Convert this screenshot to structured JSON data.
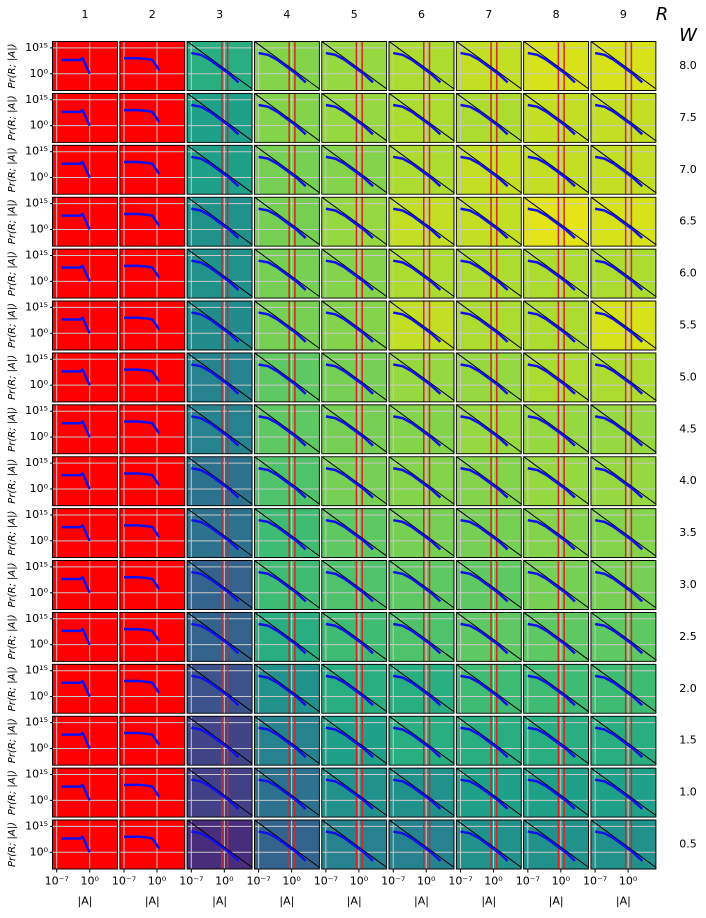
{
  "chart_data": {
    "type": "panel_grid",
    "col_title": "R",
    "row_title": "W",
    "ylabel": "Pr(R; |A|)",
    "xlabel": "|A|",
    "log": true,
    "grid": true,
    "grid_color": "#c8c8c8",
    "curve_color": "#1010ee",
    "reference_color": "#000000",
    "red_line_color": "#d62728",
    "xlim": [
      1e-08,
      1000000.0
    ],
    "ylim": [
      1e-10,
      1e+19
    ],
    "xticks": [
      {
        "value": 1e-07,
        "label": "10⁻⁷"
      },
      {
        "value": 1,
        "label": "10⁰"
      }
    ],
    "yticks": [
      {
        "value": 1,
        "label": "10⁰"
      },
      {
        "value": 1000000000000000.0,
        "label": "10¹⁵"
      }
    ],
    "reference_line": {
      "x": [
        1e-08,
        1000000.0
      ],
      "y": [
        1e+19,
        1e-09
      ]
    },
    "columns": [
      {
        "label": "1",
        "reference": false,
        "red_lines": [],
        "curve_x": [
          1e-06,
          0.001,
          0.01,
          0.03,
          0.1,
          0.3,
          1
        ],
        "curve_y": [
          100000000.0,
          100000000.0,
          100000000.0,
          1000000000.0,
          1000000.0,
          1000.0,
          1
        ]
      },
      {
        "label": "2",
        "reference": false,
        "red_lines": [],
        "curve_x": [
          1e-07,
          0.0001,
          0.01,
          0.1,
          1,
          3
        ],
        "curve_y": [
          1000000000.0,
          1000000000.0,
          300000000.0,
          100000000.0,
          10000.0,
          100
        ]
      },
      {
        "label": "3",
        "reference": true,
        "red_lines": [
          0.3,
          5
        ],
        "curve_x": [
          1e-07,
          1e-05,
          0.001,
          0.1,
          10,
          1000
        ],
        "curve_y": [
          1000000000000.0,
          100000000000.0,
          100000000.0,
          10000.0,
          1,
          1e-05
        ]
      },
      {
        "label": "4",
        "reference": true,
        "red_lines": [
          0.3,
          5
        ],
        "curve_x": [
          1e-07,
          1e-05,
          0.001,
          0.1,
          10,
          1000
        ],
        "curve_y": [
          1000000000000.0,
          100000000000.0,
          100000000.0,
          10000.0,
          1,
          1e-05
        ]
      },
      {
        "label": "5",
        "reference": true,
        "red_lines": [
          0.3,
          5
        ],
        "curve_x": [
          1e-07,
          1e-05,
          0.001,
          0.1,
          10,
          1000
        ],
        "curve_y": [
          1000000000000.0,
          100000000000.0,
          100000000.0,
          10000.0,
          1,
          1e-05
        ]
      },
      {
        "label": "6",
        "reference": true,
        "red_lines": [
          0.3,
          5
        ],
        "curve_x": [
          1e-07,
          1e-05,
          0.001,
          0.1,
          10,
          1000
        ],
        "curve_y": [
          1000000000000.0,
          100000000000.0,
          100000000.0,
          10000.0,
          1,
          1e-05
        ]
      },
      {
        "label": "7",
        "reference": true,
        "red_lines": [
          0.3,
          5
        ],
        "curve_x": [
          1e-07,
          1e-05,
          0.001,
          0.1,
          10,
          1000
        ],
        "curve_y": [
          1000000000000.0,
          100000000000.0,
          100000000.0,
          10000.0,
          1,
          1e-05
        ]
      },
      {
        "label": "8",
        "reference": true,
        "red_lines": [
          0.3,
          5
        ],
        "curve_x": [
          1e-07,
          1e-05,
          0.001,
          0.1,
          10,
          1000
        ],
        "curve_y": [
          1000000000000.0,
          100000000000.0,
          100000000.0,
          10000.0,
          1,
          1e-05
        ]
      },
      {
        "label": "9",
        "reference": true,
        "red_lines": [
          0.3,
          5
        ],
        "curve_x": [
          1e-07,
          1e-05,
          0.001,
          0.1,
          10,
          1000
        ],
        "curve_y": [
          1000000000000.0,
          100000000000.0,
          100000000.0,
          10000.0,
          1,
          1e-05
        ]
      }
    ],
    "rows": [
      {
        "label": "8.0",
        "colors": [
          "#ff0000",
          "#ff0000",
          "#28ae80",
          "#84d44b",
          "#95d840",
          "#addc30",
          "#c2df23",
          "#d8e219",
          "#d8e219"
        ]
      },
      {
        "label": "7.5",
        "colors": [
          "#ff0000",
          "#ff0000",
          "#1fa088",
          "#84d44b",
          "#95d840",
          "#addc30",
          "#addc30",
          "#c2df23",
          "#c2df23"
        ]
      },
      {
        "label": "7.0",
        "colors": [
          "#ff0000",
          "#ff0000",
          "#1fa088",
          "#75d054",
          "#84d44b",
          "#addc30",
          "#c2df23",
          "#c2df23",
          "#c2df23"
        ]
      },
      {
        "label": "6.5",
        "colors": [
          "#ff0000",
          "#ff0000",
          "#21918c",
          "#75d054",
          "#95d840",
          "#c2df23",
          "#c2df23",
          "#e5e419",
          "#d8e219"
        ]
      },
      {
        "label": "6.0",
        "colors": [
          "#ff0000",
          "#ff0000",
          "#21918c",
          "#75d054",
          "#84d44b",
          "#addc30",
          "#addc30",
          "#addc30",
          "#addc30"
        ]
      },
      {
        "label": "5.5",
        "colors": [
          "#ff0000",
          "#ff0000",
          "#228c8d",
          "#75d054",
          "#84d44b",
          "#c2df23",
          "#addc30",
          "#addc30",
          "#d8e219"
        ]
      },
      {
        "label": "5.0",
        "colors": [
          "#ff0000",
          "#ff0000",
          "#26828e",
          "#5ec962",
          "#75d054",
          "#95d840",
          "#95d840",
          "#addc30",
          "#addc30"
        ]
      },
      {
        "label": "4.5",
        "colors": [
          "#ff0000",
          "#ff0000",
          "#26828e",
          "#5ec962",
          "#75d054",
          "#84d44b",
          "#95d840",
          "#95d840",
          "#95d840"
        ]
      },
      {
        "label": "4.0",
        "colors": [
          "#ff0000",
          "#ff0000",
          "#2c728e",
          "#4ec36b",
          "#75d054",
          "#84d44b",
          "#84d44b",
          "#95d840",
          "#95d840"
        ]
      },
      {
        "label": "3.5",
        "colors": [
          "#ff0000",
          "#ff0000",
          "#2c728e",
          "#3fbc73",
          "#5ec962",
          "#75d054",
          "#75d054",
          "#84d44b",
          "#84d44b"
        ]
      },
      {
        "label": "3.0",
        "colors": [
          "#ff0000",
          "#ff0000",
          "#33638d",
          "#3fbc73",
          "#4ec36b",
          "#5ec962",
          "#5ec962",
          "#75d054",
          "#75d054"
        ]
      },
      {
        "label": "2.5",
        "colors": [
          "#ff0000",
          "#ff0000",
          "#33638d",
          "#28ae80",
          "#3fbc73",
          "#4ec36b",
          "#5ec962",
          "#5ec962",
          "#5ec962"
        ]
      },
      {
        "label": "2.0",
        "colors": [
          "#ff0000",
          "#ff0000",
          "#3b528b",
          "#21918c",
          "#28ae80",
          "#28ae80",
          "#3fbc73",
          "#3fbc73",
          "#3fbc73"
        ]
      },
      {
        "label": "1.5",
        "colors": [
          "#ff0000",
          "#ff0000",
          "#414487",
          "#26828e",
          "#1fa088",
          "#28ae80",
          "#28ae80",
          "#28ae80",
          "#28ae80"
        ]
      },
      {
        "label": "1.0",
        "colors": [
          "#ff0000",
          "#ff0000",
          "#424086",
          "#2c728e",
          "#21918c",
          "#21918c",
          "#1fa088",
          "#1fa088",
          "#1fa088"
        ]
      },
      {
        "label": "0.5",
        "colors": [
          "#ff0000",
          "#ff0000",
          "#472d7b",
          "#33638d",
          "#26828e",
          "#26828e",
          "#21918c",
          "#21918c",
          "#21918c"
        ]
      }
    ]
  }
}
